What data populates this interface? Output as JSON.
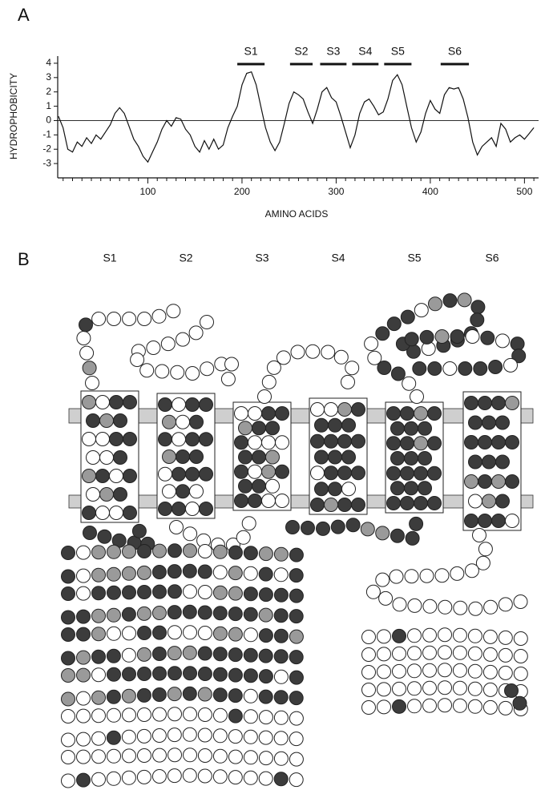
{
  "panel_labels": [
    "A",
    "B"
  ],
  "chart_data": {
    "type": "line",
    "xlabel": "AMINO ACIDS",
    "ylabel": "HYDROPHOBICITY",
    "x": [
      5,
      10,
      15,
      20,
      25,
      30,
      35,
      40,
      45,
      50,
      55,
      60,
      65,
      70,
      75,
      80,
      85,
      90,
      95,
      100,
      105,
      110,
      115,
      120,
      125,
      130,
      135,
      140,
      145,
      150,
      155,
      160,
      165,
      170,
      175,
      180,
      185,
      190,
      195,
      200,
      205,
      210,
      215,
      220,
      225,
      230,
      235,
      240,
      245,
      250,
      255,
      260,
      265,
      270,
      275,
      280,
      285,
      290,
      295,
      300,
      305,
      310,
      315,
      320,
      325,
      330,
      335,
      340,
      345,
      350,
      355,
      360,
      365,
      370,
      375,
      380,
      385,
      390,
      395,
      400,
      405,
      410,
      415,
      420,
      425,
      430,
      435,
      440,
      445,
      450,
      455,
      460,
      465,
      470,
      475,
      480,
      485,
      490,
      495,
      500,
      505,
      510
    ],
    "series": [
      {
        "color": "#111111",
        "values": [
          0.3,
          -0.5,
          -2.0,
          -2.2,
          -1.5,
          -1.8,
          -1.2,
          -1.6,
          -1.0,
          -1.3,
          -0.8,
          -0.3,
          0.5,
          0.9,
          0.5,
          -0.4,
          -1.3,
          -1.8,
          -2.5,
          -2.9,
          -2.2,
          -1.5,
          -0.6,
          0.0,
          -0.4,
          0.2,
          0.1,
          -0.6,
          -1.0,
          -1.8,
          -2.2,
          -1.4,
          -2.0,
          -1.3,
          -2.0,
          -1.7,
          -0.5,
          0.3,
          1.0,
          2.5,
          3.3,
          3.4,
          2.5,
          1.0,
          -0.5,
          -1.5,
          -2.1,
          -1.5,
          -0.2,
          1.2,
          2.0,
          1.8,
          1.5,
          0.6,
          -0.2,
          0.8,
          2.0,
          2.3,
          1.6,
          1.3,
          0.3,
          -0.8,
          -1.9,
          -1.0,
          0.5,
          1.3,
          1.5,
          1.0,
          0.4,
          0.6,
          1.5,
          2.8,
          3.2,
          2.5,
          1.0,
          -0.5,
          -1.5,
          -0.8,
          0.5,
          1.4,
          0.8,
          0.5,
          1.8,
          2.3,
          2.2,
          2.3,
          1.5,
          0.2,
          -1.5,
          -2.4,
          -1.8,
          -1.5,
          -1.2,
          -1.8,
          -0.2,
          -0.6,
          -1.5,
          -1.2,
          -1.0,
          -1.3,
          -0.9,
          -0.5
        ]
      }
    ],
    "xlim": [
      0,
      515
    ],
    "ylim": [
      -4,
      4.5
    ],
    "xticks": [
      100,
      200,
      300,
      400,
      500
    ],
    "xminorticks": [
      10,
      20,
      30,
      40,
      50,
      60,
      70,
      80,
      90,
      110,
      120,
      130,
      140,
      150,
      160,
      170,
      180,
      190,
      210,
      220,
      230,
      240,
      250,
      260,
      270,
      280,
      290,
      310,
      320,
      330,
      340,
      350,
      360,
      370,
      380,
      390,
      410,
      420,
      430,
      440,
      450,
      460,
      470,
      480,
      490,
      510
    ],
    "yticks": [
      -3,
      -2,
      -1,
      0,
      1,
      2,
      3,
      4
    ],
    "zero_line": true,
    "annotations": [
      {
        "label": "S1",
        "start": 195,
        "end": 224
      },
      {
        "label": "S2",
        "start": 251,
        "end": 275
      },
      {
        "label": "S3",
        "start": 283,
        "end": 311
      },
      {
        "label": "S4",
        "start": 317,
        "end": 345
      },
      {
        "label": "S5",
        "start": 351,
        "end": 380
      },
      {
        "label": "S6",
        "start": 411,
        "end": 441
      }
    ]
  },
  "diagram": {
    "segment_labels": [
      "S1",
      "S2",
      "S3",
      "S4",
      "S5",
      "S6"
    ]
  }
}
